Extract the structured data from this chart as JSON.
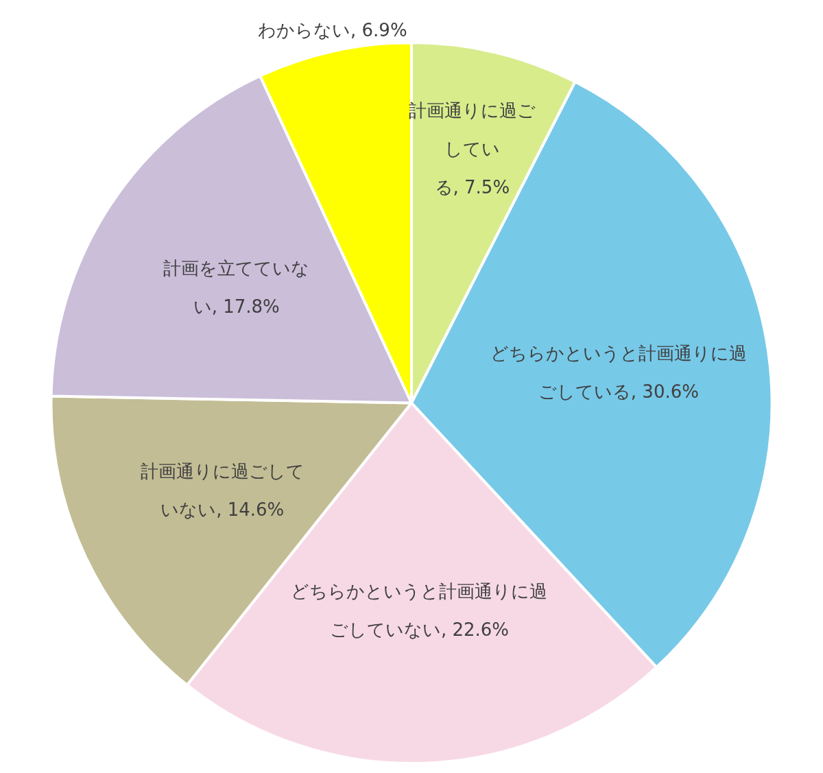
{
  "chart_data": {
    "type": "pie",
    "categories": [
      "計画通りに過ごしている",
      "どちらかというと計画通りに過ごしている",
      "どちらかというと計画通りに過ごしていない",
      "計画通りに過ごしていない",
      "計画を立てていない",
      "わからない"
    ],
    "values": [
      7.5,
      30.6,
      22.6,
      14.6,
      17.8,
      6.9
    ],
    "value_labels": [
      "7.5%",
      "30.6%",
      "22.6%",
      "14.6%",
      "17.8%",
      "6.9%"
    ],
    "colors": [
      "#d8ec8c",
      "#77c9e8",
      "#f7d9e6",
      "#c3bd95",
      "#cabed9",
      "#ffff00"
    ],
    "data_labels": true,
    "legend": false
  }
}
